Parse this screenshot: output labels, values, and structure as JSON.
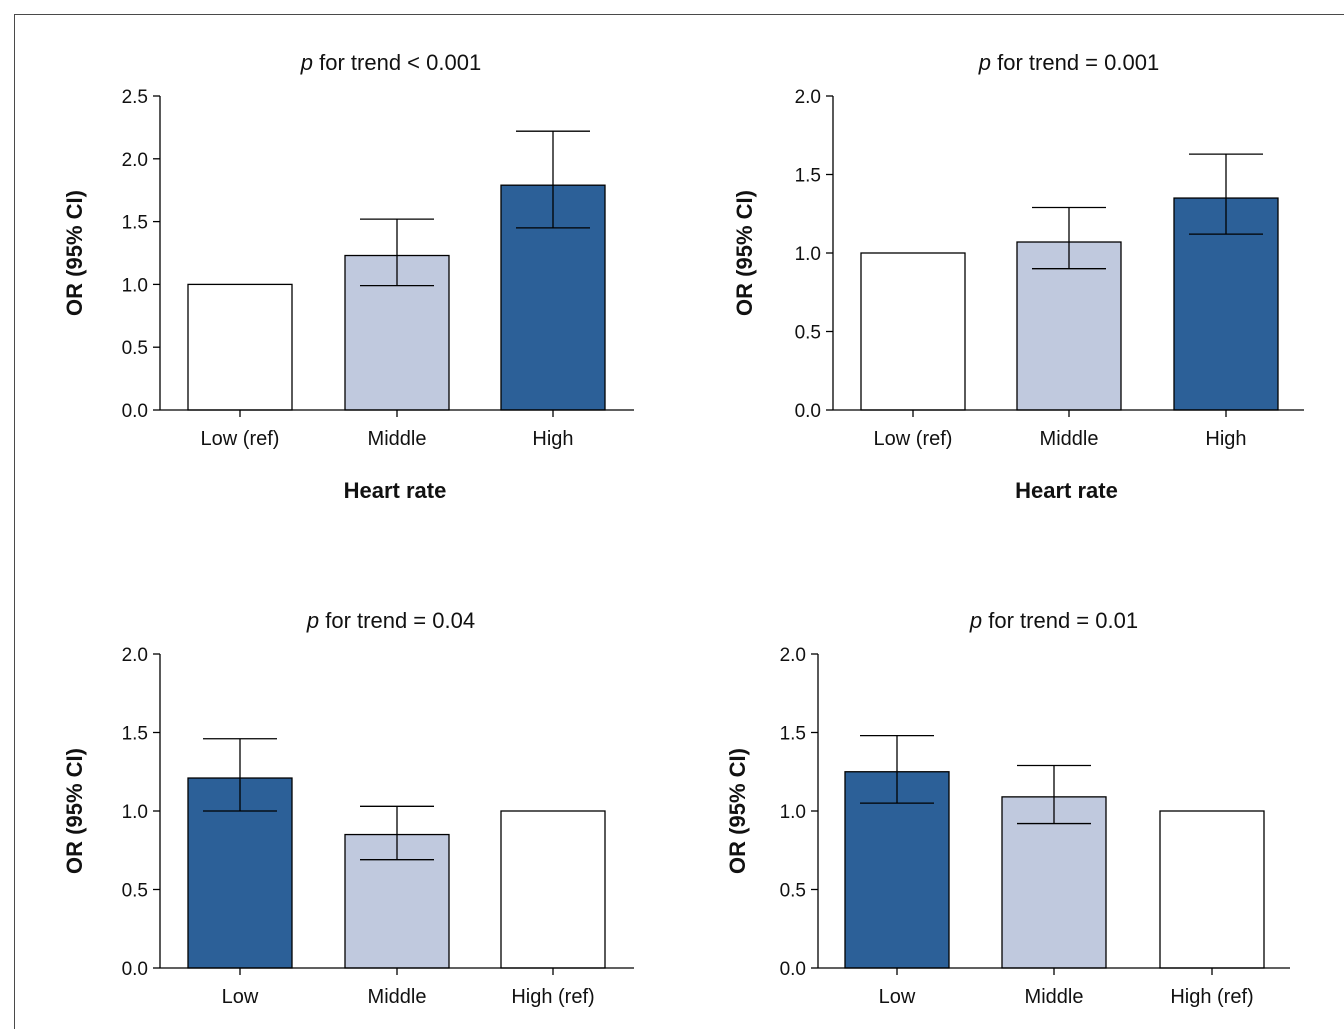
{
  "chart_data": [
    {
      "type": "bar",
      "title_prefix": "p",
      "title_rest": " for trend < 0.001",
      "xlabel": "Heart rate",
      "ylabel": "OR (95% CI)",
      "ylim": [
        0,
        2.5
      ],
      "yticks": [
        "0.0",
        "0.5",
        "1.0",
        "1.5",
        "2.0",
        "2.5"
      ],
      "categories": [
        "Low (ref)",
        "Middle",
        "High"
      ],
      "values": [
        1.0,
        1.23,
        1.79
      ],
      "ci_low": [
        null,
        0.99,
        1.45
      ],
      "ci_high": [
        null,
        1.52,
        2.22
      ],
      "colors": [
        "#ffffff",
        "#c0c9de",
        "#2c6098"
      ]
    },
    {
      "type": "bar",
      "title_prefix": "p",
      "title_rest": " for trend = 0.001",
      "xlabel": "Heart rate",
      "ylabel": "OR (95% CI)",
      "ylim": [
        0,
        2.0
      ],
      "yticks": [
        "0.0",
        "0.5",
        "1.0",
        "1.5",
        "2.0"
      ],
      "categories": [
        "Low (ref)",
        "Middle",
        "High"
      ],
      "values": [
        1.0,
        1.07,
        1.35
      ],
      "ci_low": [
        null,
        0.9,
        1.12
      ],
      "ci_high": [
        null,
        1.29,
        1.63
      ],
      "colors": [
        "#ffffff",
        "#c0c9de",
        "#2c6098"
      ]
    },
    {
      "type": "bar",
      "title_prefix": "p",
      "title_rest": " for trend = 0.04",
      "xlabel": "",
      "ylabel": "OR (95% CI)",
      "ylim": [
        0,
        2.0
      ],
      "yticks": [
        "0.0",
        "0.5",
        "1.0",
        "1.5",
        "2.0"
      ],
      "categories": [
        "Low",
        "Middle",
        "High (ref)"
      ],
      "values": [
        1.21,
        0.85,
        1.0
      ],
      "ci_low": [
        1.0,
        0.69,
        null
      ],
      "ci_high": [
        1.46,
        1.03,
        null
      ],
      "colors": [
        "#2c6098",
        "#c0c9de",
        "#ffffff"
      ]
    },
    {
      "type": "bar",
      "title_prefix": "p",
      "title_rest": " for trend = 0.01",
      "xlabel": "",
      "ylabel": "OR (95% CI)",
      "ylim": [
        0,
        2.0
      ],
      "yticks": [
        "0.0",
        "0.5",
        "1.0",
        "1.5",
        "2.0"
      ],
      "categories": [
        "Low",
        "Middle",
        "High (ref)"
      ],
      "values": [
        1.25,
        1.09,
        1.0
      ],
      "ci_low": [
        1.05,
        0.92,
        null
      ],
      "ci_high": [
        1.48,
        1.29,
        null
      ],
      "colors": [
        "#2c6098",
        "#c0c9de",
        "#ffffff"
      ]
    }
  ]
}
